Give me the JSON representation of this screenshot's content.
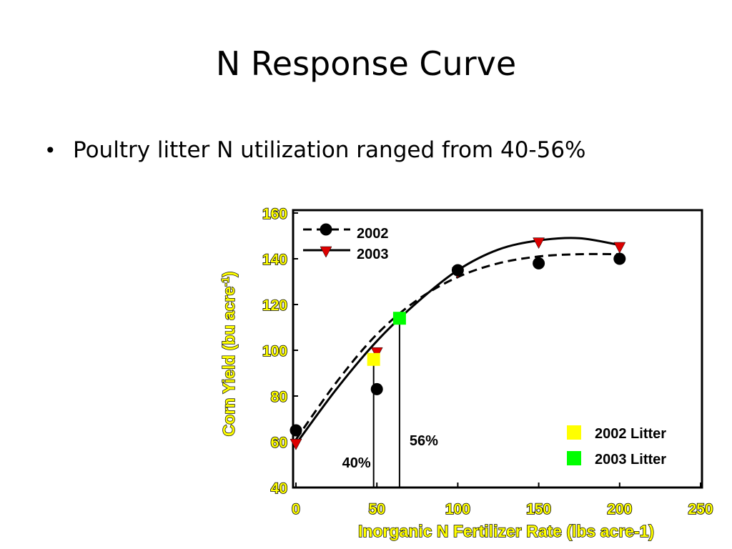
{
  "slide": {
    "title": "N Response Curve",
    "bullet": "Poultry litter N utilization ranged from 40-56%"
  },
  "colors": {
    "tick_fill": "#ffff00",
    "series_2003_marker": "#dd0000",
    "litter_2002": "#ffff00",
    "litter_2003": "#00ff00"
  },
  "chart_data": {
    "type": "scatter",
    "xlabel": "Inorganic N Fertilizer Rate (lbs acre-1)",
    "ylabel": "Corn Yield (bu acre-1)",
    "ylabel_base": "Corn Yield (bu acre",
    "ylabel_sup": "-1",
    "ylabel_end": ")",
    "xlim": [
      0,
      250
    ],
    "ylim": [
      40,
      160
    ],
    "xticks": [
      0,
      50,
      100,
      150,
      200,
      250
    ],
    "yticks": [
      40,
      60,
      80,
      100,
      120,
      140,
      160
    ],
    "grid": false,
    "series": [
      {
        "name": "2002",
        "marker": "circle",
        "line": "dashed",
        "x": [
          0,
          50,
          100,
          150,
          200
        ],
        "y": [
          65,
          83,
          135,
          138,
          140
        ],
        "curve_x": [
          0,
          25,
          50,
          75,
          100,
          125,
          150,
          175,
          200
        ],
        "curve_y": [
          61,
          86,
          107,
          122,
          132,
          138,
          141,
          142,
          142
        ]
      },
      {
        "name": "2003",
        "marker": "triangle-down",
        "line": "solid",
        "x": [
          0,
          50,
          100,
          150,
          200
        ],
        "y": [
          59,
          99,
          134,
          147,
          145
        ],
        "curve_x": [
          0,
          25,
          50,
          75,
          100,
          125,
          150,
          175,
          200
        ],
        "curve_y": [
          59,
          83,
          104,
          121,
          135,
          144,
          148,
          149,
          146
        ]
      }
    ],
    "litter_points": [
      {
        "name": "2002 Litter",
        "x": 48,
        "y": 96,
        "color": "#ffff00",
        "label": "40%"
      },
      {
        "name": "2003 Litter",
        "x": 64,
        "y": 114,
        "color": "#00ff00",
        "label": "56%"
      }
    ]
  }
}
